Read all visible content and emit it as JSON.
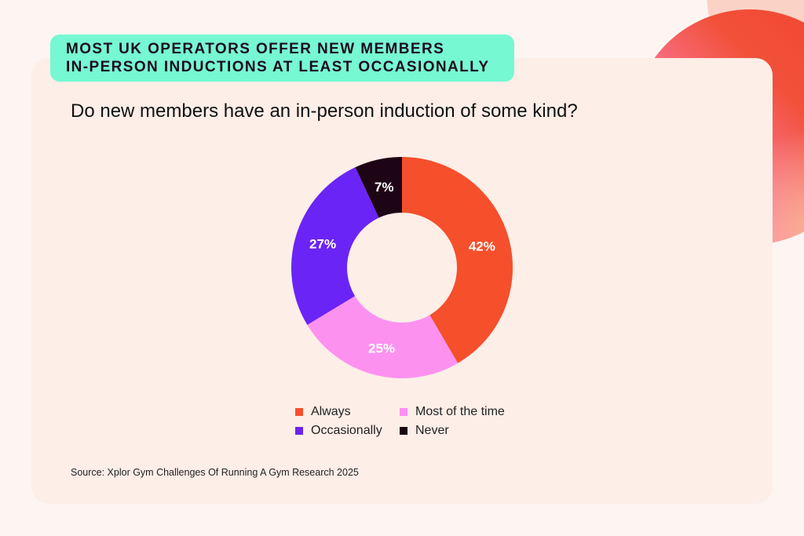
{
  "banner": {
    "line1": "MOST UK OPERATORS OFFER NEW MEMBERS",
    "line2": "IN-PERSON INDUCTIONS AT LEAST OCCASIONALLY"
  },
  "colors": {
    "banner": "#76f8d2",
    "card": "#fdeee7",
    "background": "#fdf5f2"
  },
  "chart_data": {
    "type": "pie",
    "variant": "donut",
    "title": "Do new members have an in-person induction of some kind?",
    "unit": "%",
    "slices": [
      {
        "label": "Always",
        "value": 42,
        "display": "42%",
        "color": "#f54f2c"
      },
      {
        "label": "Most of the time",
        "value": 25,
        "display": "25%",
        "color": "#fd91f0"
      },
      {
        "label": "Occasionally",
        "value": 27,
        "display": "27%",
        "color": "#6b24f6"
      },
      {
        "label": "Never",
        "value": 7,
        "display": "7%",
        "color": "#1e0516"
      }
    ],
    "legend_position": "bottom"
  },
  "source": "Source: Xplor Gym Challenges Of Running A Gym Research 2025"
}
